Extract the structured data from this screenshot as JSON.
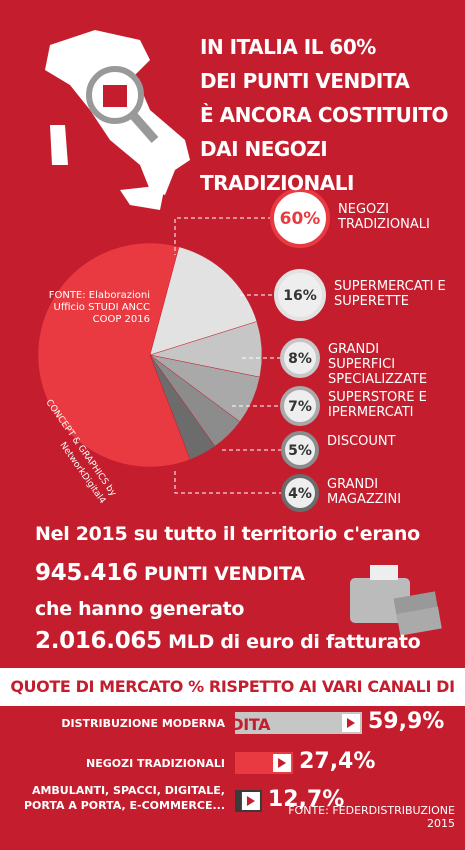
{
  "header": {
    "title_lines": [
      "IN ITALIA IL 60%",
      "DEI PUNTI VENDITA",
      "È ANCORA COSTITUITO",
      "DAI NEGOZI TRADIZIONALI"
    ]
  },
  "stats": {
    "line1": "Nel 2015 su tutto il territorio c'erano",
    "points": {
      "number": "945.416",
      "text": "PUNTI VENDITA"
    },
    "line3": "che hanno generato",
    "revenue": {
      "number": "2.016.065",
      "text": "MLD di euro di fatturato"
    }
  },
  "chart_data": [
    {
      "type": "pie",
      "categories": [
        "NEGOZI TRADIZIONALI",
        "SUPERMERCATI E SUPERETTE",
        "GRANDI SUPERFICI SPECIALIZZATE",
        "SUPERSTORE E IPERMERCATI",
        "DISCOUNT",
        "GRANDI MAGAZZINI"
      ],
      "values": [
        60,
        16,
        8,
        7,
        5,
        4
      ],
      "value_labels": [
        "60%",
        "16%",
        "8%",
        "7%",
        "5%",
        "4%"
      ],
      "colors": [
        "#e83a40",
        "#e2e2e2",
        "#c6c6c6",
        "#a9a9a9",
        "#8c8c8c",
        "#6c6c6c"
      ],
      "annotations": [
        "FONTE: Elaborazioni Ufficio STUDI ANCC COOP 2016",
        "CONCEPT & GRAPHICS by NetworkDigital4"
      ]
    },
    {
      "type": "bar",
      "title": "QUOTE DI MERCATO % RISPETTO AI VARI CANALI DI VENDITA",
      "categories": [
        "DISTRIBUZIONE MODERNA",
        "NEGOZI TRADIZIONALI",
        "AMBULANTI, SPACCI, DIGITALE, PORTA A PORTA, E-COMMERCE..."
      ],
      "values": [
        59.9,
        27.4,
        12.7
      ],
      "value_labels": [
        "59,9%",
        "27,4%",
        "12,7%"
      ],
      "colors": [
        "#c6c6c6",
        "#e83a40",
        "#3a3a3a"
      ],
      "source": "FONTE: FEDERDISTRIBUZIONE 2015"
    }
  ]
}
